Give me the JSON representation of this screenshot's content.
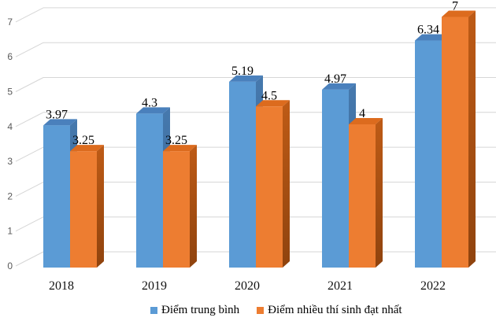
{
  "chart_data": {
    "type": "bar",
    "style": "3d-clustered-column",
    "title": "",
    "categories": [
      "2018",
      "2019",
      "2020",
      "2021",
      "2022"
    ],
    "series": [
      {
        "name": "Điểm trung bình",
        "values": [
          3.97,
          4.3,
          5.19,
          4.97,
          6.34
        ],
        "labels": [
          "3.97",
          "4.3",
          "5.19",
          "4.97",
          "6.34"
        ],
        "color_front": "#5B9BD5",
        "color_top": "#4A80BC",
        "color_side_light": "#4679AE",
        "color_side_dark": "#38648F"
      },
      {
        "name": "Điểm nhiều thí sinh đạt nhất",
        "values": [
          3.25,
          3.25,
          4.5,
          4,
          7
        ],
        "labels": [
          "3.25",
          "3.25",
          "4.5",
          "4",
          "7"
        ],
        "color_front": "#ED7D31",
        "color_top": "#DC6B1E",
        "color_side_light": "#BE5B16",
        "color_side_dark": "#8F430E"
      }
    ],
    "ylim": [
      0,
      7
    ],
    "yticks": [
      "0",
      "1",
      "2",
      "3",
      "4",
      "5",
      "6",
      "7"
    ],
    "grid": true,
    "gridline_color": "#D6D6D6",
    "legend_position": "bottom"
  }
}
